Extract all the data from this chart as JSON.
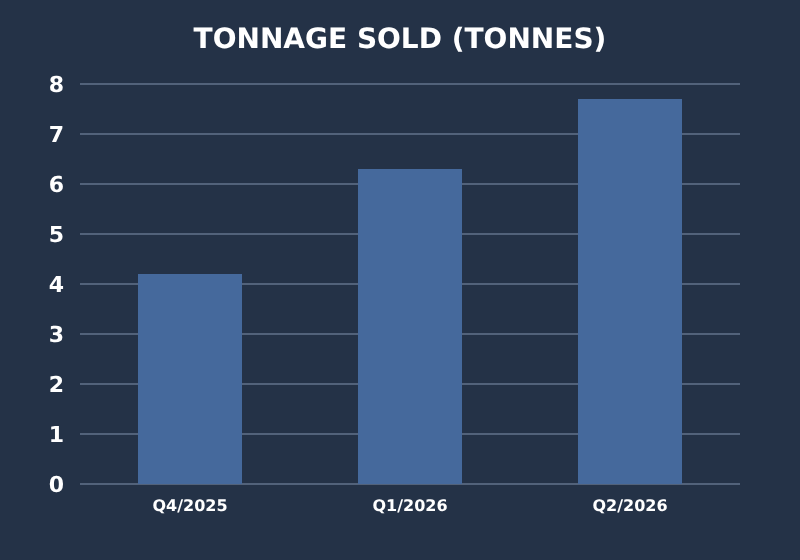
{
  "chart_data": {
    "type": "bar",
    "title": "TONNAGE SOLD (TONNES)",
    "categories": [
      "Q4/2025",
      "Q1/2026",
      "Q2/2026"
    ],
    "values": [
      4.2,
      6.3,
      7.7
    ],
    "color": "#45699c",
    "ylim": [
      0,
      8
    ],
    "yticks": [
      0,
      1,
      2,
      3,
      4,
      5,
      6,
      7,
      8
    ],
    "grid": "y"
  }
}
